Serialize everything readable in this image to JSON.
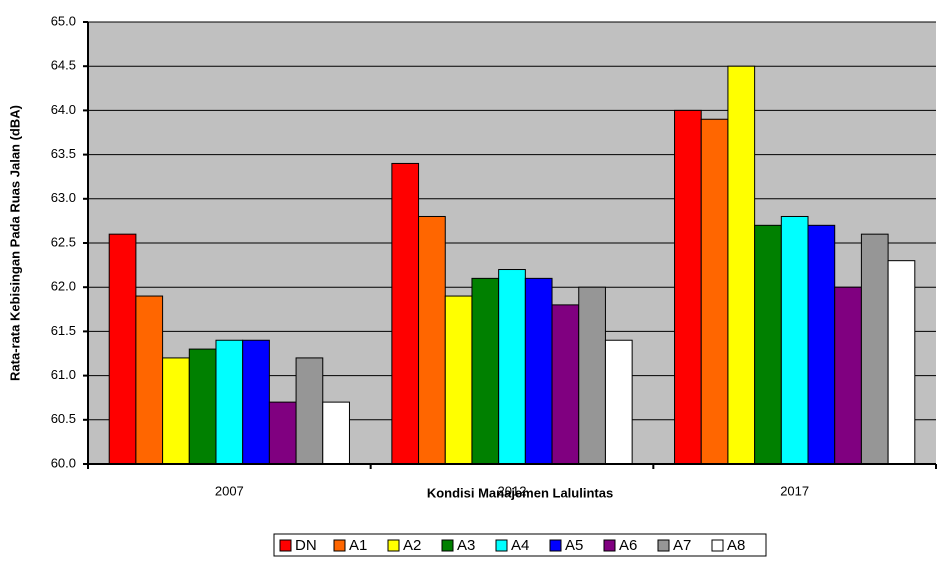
{
  "chart_data": {
    "type": "bar",
    "y_label": "Rata-rata Kebisingan Pada Ruas Jalan (dBA)",
    "x_label": "Kondisi Manajemen Lalulintas",
    "categories": [
      "2007",
      "2012",
      "2017"
    ],
    "series": [
      {
        "name": "DN",
        "color": "#ff0000",
        "values": [
          62.6,
          63.4,
          64.0
        ]
      },
      {
        "name": "A1",
        "color": "#ff6600",
        "values": [
          61.9,
          62.8,
          63.9
        ]
      },
      {
        "name": "A2",
        "color": "#ffff00",
        "values": [
          61.2,
          61.9,
          64.5
        ]
      },
      {
        "name": "A3",
        "color": "#008000",
        "values": [
          61.3,
          62.1,
          62.7
        ]
      },
      {
        "name": "A4",
        "color": "#00ffff",
        "values": [
          61.4,
          62.2,
          62.8
        ]
      },
      {
        "name": "A5",
        "color": "#0000ff",
        "values": [
          61.4,
          62.1,
          62.7
        ]
      },
      {
        "name": "A6",
        "color": "#800080",
        "values": [
          60.7,
          61.8,
          62.0
        ]
      },
      {
        "name": "A7",
        "color": "#969696",
        "values": [
          61.2,
          62.0,
          62.6
        ]
      },
      {
        "name": "A8",
        "color": "#ffffff",
        "values": [
          60.7,
          61.4,
          62.3
        ]
      }
    ],
    "ylim": [
      60,
      65
    ],
    "yticks": [
      {
        "value": 60,
        "label": "60.0"
      },
      60.5,
      {
        "value": 61,
        "label": "61.0"
      },
      61.5,
      {
        "value": 62,
        "label": "62.0"
      },
      62.5,
      {
        "value": 63,
        "label": "63.0"
      },
      63.5,
      {
        "value": 64,
        "label": "64.0"
      },
      64.5,
      {
        "value": 65,
        "label": "65.0"
      }
    ],
    "grid": true,
    "legend": "bottom"
  }
}
